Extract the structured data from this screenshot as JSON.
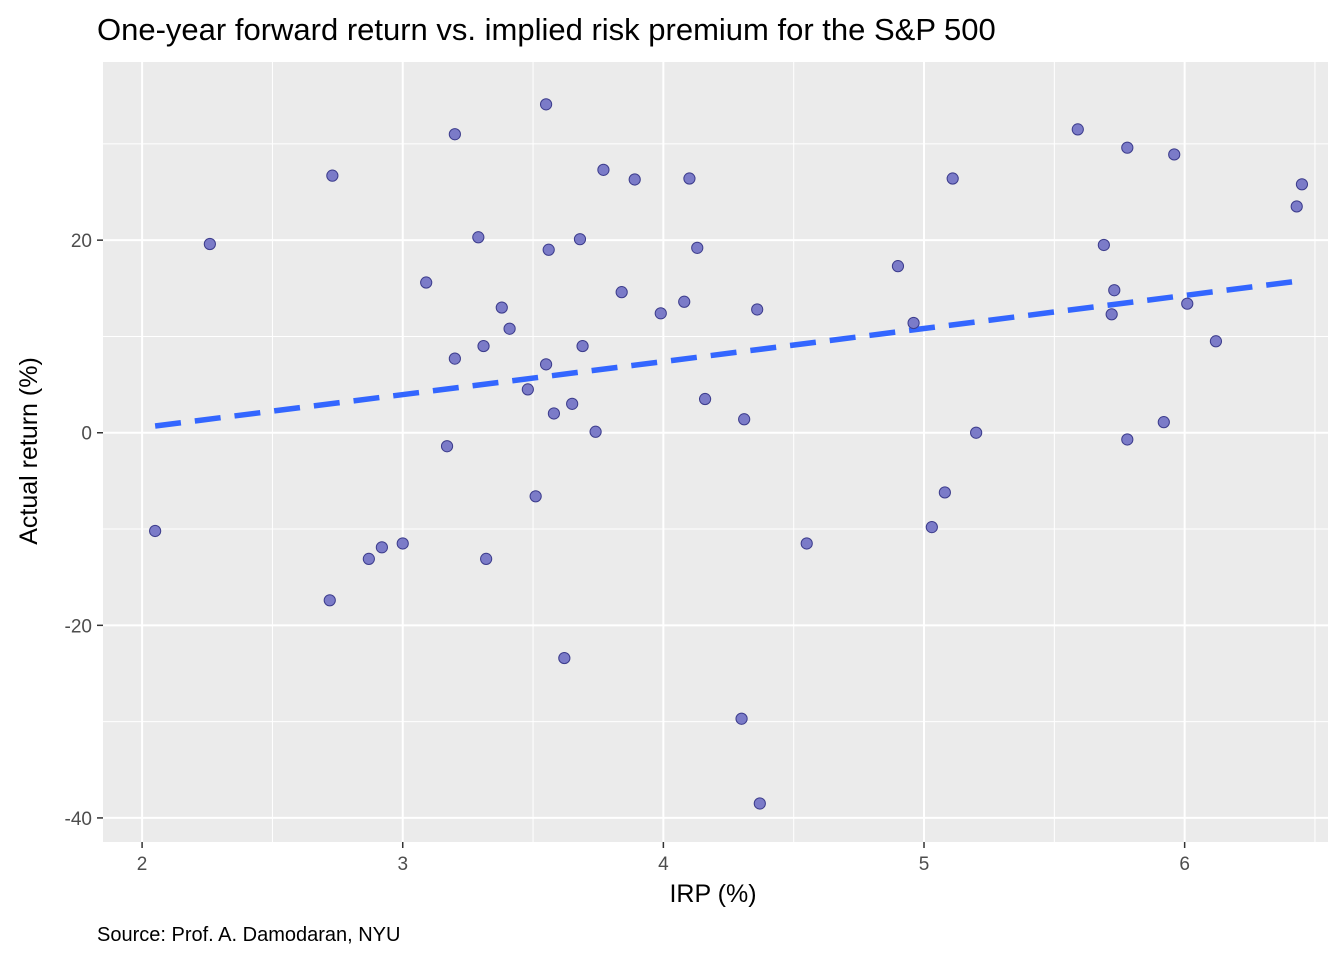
{
  "chart_data": {
    "type": "scatter",
    "title": "One-year forward return vs. implied risk premium for the S&P 500",
    "xlabel": "IRP (%)",
    "ylabel": "Actual return (%)",
    "caption": "Source: Prof. A. Damodaran, NYU",
    "xlim": [
      1.85,
      6.55
    ],
    "ylim": [
      -42.5,
      38.5
    ],
    "x_ticks": [
      2,
      3,
      4,
      5,
      6
    ],
    "y_ticks": [
      -40,
      -20,
      0,
      20
    ],
    "grid": true,
    "point_color": "#7b7bc8",
    "point_stroke": "#3c3c8c",
    "panel_background": "#ebebeb",
    "trend_color": "#3366ff",
    "trend": {
      "style": "dashed",
      "x": [
        2.05,
        6.45
      ],
      "y": [
        0.7,
        15.8
      ]
    },
    "points": [
      {
        "x": 2.05,
        "y": -10.2
      },
      {
        "x": 2.26,
        "y": 19.6
      },
      {
        "x": 2.72,
        "y": -17.4
      },
      {
        "x": 2.73,
        "y": 26.7
      },
      {
        "x": 2.87,
        "y": -13.1
      },
      {
        "x": 2.92,
        "y": -11.9
      },
      {
        "x": 3.0,
        "y": -11.5
      },
      {
        "x": 3.09,
        "y": 15.6
      },
      {
        "x": 3.17,
        "y": -1.4
      },
      {
        "x": 3.2,
        "y": 7.7
      },
      {
        "x": 3.2,
        "y": 31.0
      },
      {
        "x": 3.29,
        "y": 20.3
      },
      {
        "x": 3.31,
        "y": 9.0
      },
      {
        "x": 3.32,
        "y": -13.1
      },
      {
        "x": 3.38,
        "y": 13.0
      },
      {
        "x": 3.41,
        "y": 10.8
      },
      {
        "x": 3.48,
        "y": 4.5
      },
      {
        "x": 3.51,
        "y": -6.6
      },
      {
        "x": 3.55,
        "y": 7.1
      },
      {
        "x": 3.55,
        "y": 34.1
      },
      {
        "x": 3.56,
        "y": 19.0
      },
      {
        "x": 3.58,
        "y": 2.0
      },
      {
        "x": 3.62,
        "y": -23.4
      },
      {
        "x": 3.65,
        "y": 3.0
      },
      {
        "x": 3.68,
        "y": 20.1
      },
      {
        "x": 3.69,
        "y": 9.0
      },
      {
        "x": 3.74,
        "y": 0.1
      },
      {
        "x": 3.77,
        "y": 27.3
      },
      {
        "x": 3.84,
        "y": 14.6
      },
      {
        "x": 3.89,
        "y": 26.3
      },
      {
        "x": 3.99,
        "y": 12.4
      },
      {
        "x": 4.08,
        "y": 13.6
      },
      {
        "x": 4.1,
        "y": 26.4
      },
      {
        "x": 4.13,
        "y": 19.2
      },
      {
        "x": 4.16,
        "y": 3.5
      },
      {
        "x": 4.3,
        "y": -29.7
      },
      {
        "x": 4.31,
        "y": 1.4
      },
      {
        "x": 4.36,
        "y": 12.8
      },
      {
        "x": 4.37,
        "y": -38.5
      },
      {
        "x": 4.55,
        "y": -11.5
      },
      {
        "x": 4.9,
        "y": 17.3
      },
      {
        "x": 4.96,
        "y": 11.4
      },
      {
        "x": 5.03,
        "y": -9.8
      },
      {
        "x": 5.08,
        "y": -6.2
      },
      {
        "x": 5.11,
        "y": 26.4
      },
      {
        "x": 5.2,
        "y": 0.0
      },
      {
        "x": 5.59,
        "y": 31.5
      },
      {
        "x": 5.69,
        "y": 19.5
      },
      {
        "x": 5.72,
        "y": 12.3
      },
      {
        "x": 5.73,
        "y": 14.8
      },
      {
        "x": 5.78,
        "y": 29.6
      },
      {
        "x": 5.78,
        "y": -0.7
      },
      {
        "x": 5.92,
        "y": 1.1
      },
      {
        "x": 5.96,
        "y": 28.9
      },
      {
        "x": 6.01,
        "y": 13.4
      },
      {
        "x": 6.12,
        "y": 9.5
      },
      {
        "x": 6.43,
        "y": 23.5
      },
      {
        "x": 6.45,
        "y": 25.8
      }
    ]
  }
}
